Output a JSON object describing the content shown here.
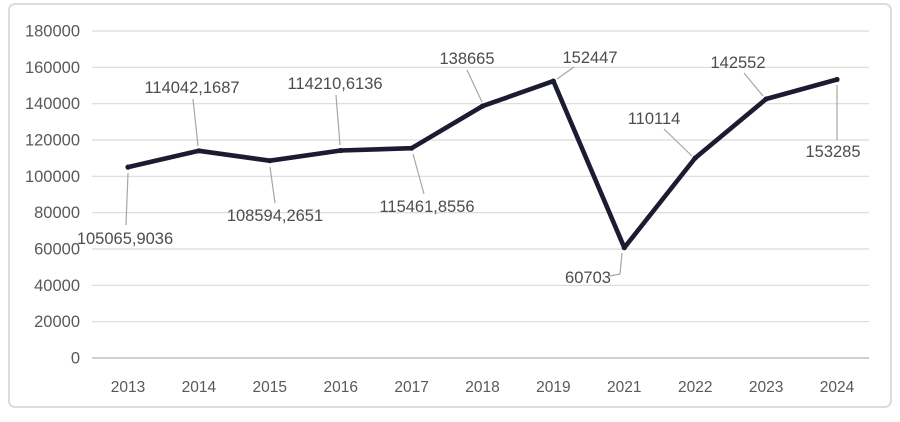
{
  "chart_data": {
    "type": "line",
    "title": "",
    "xlabel": "",
    "ylabel": "",
    "legend": false,
    "grid": true,
    "categories": [
      "2013",
      "2014",
      "2015",
      "2016",
      "2017",
      "2018",
      "2019",
      "2021",
      "2022",
      "2023",
      "2024"
    ],
    "values": [
      105065.9036,
      114042.1687,
      108594.2651,
      114210.6136,
      115461.8556,
      138665,
      152447,
      60703,
      110114,
      142552,
      153285
    ],
    "data_labels": [
      "105065,9036",
      "114042,1687",
      "108594,2651",
      "114210,6136",
      "115461,8556",
      "138665",
      "152447",
      "60703",
      "110114",
      "142552",
      "153285"
    ],
    "y_ticks": [
      0,
      20000,
      40000,
      60000,
      80000,
      100000,
      120000,
      140000,
      160000,
      180000
    ],
    "y_tick_labels": [
      "0",
      "20000",
      "40000",
      "60000",
      "80000",
      "100000",
      "120000",
      "140000",
      "160000",
      "180000"
    ],
    "ylim": [
      0,
      180000
    ],
    "colors": {
      "line": "#1b1b32",
      "gridline": "#d9d9d9",
      "axis_line": "#bfbfbf",
      "leader_line": "#a6a6a6",
      "tick_label": "#595959",
      "data_label": "#4d4d4d"
    }
  }
}
